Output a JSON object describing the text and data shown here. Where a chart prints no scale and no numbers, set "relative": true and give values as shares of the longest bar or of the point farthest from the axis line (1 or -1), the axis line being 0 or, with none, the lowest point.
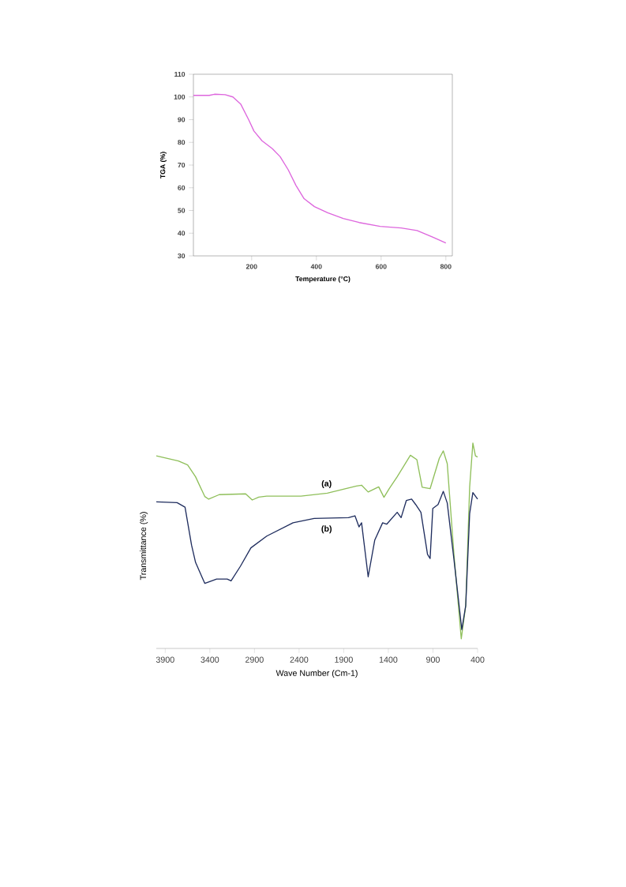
{
  "chart_data": [
    {
      "type": "line",
      "xlabel": "Temperature (°C)",
      "ylabel": "TGA (%)",
      "xlim": [
        20,
        820
      ],
      "ylim": [
        30,
        110
      ],
      "xticks": [
        200,
        400,
        600,
        800
      ],
      "yticks": [
        30,
        40,
        50,
        60,
        70,
        80,
        90,
        100,
        110
      ],
      "series": [
        {
          "color": "#dd66dd",
          "x": [
            20,
            69,
            85,
            118,
            142,
            166,
            191,
            207,
            232,
            264,
            288,
            313,
            337,
            362,
            394,
            435,
            483,
            532,
            597,
            662,
            711,
            759,
            800
          ],
          "values": [
            100.7,
            100.7,
            101.2,
            101,
            100,
            96.9,
            89.9,
            85,
            80.7,
            77.2,
            73.7,
            67.9,
            61,
            55.2,
            51.7,
            49,
            46.5,
            44.7,
            43,
            42.3,
            41.2,
            38.3,
            35.7
          ]
        }
      ]
    },
    {
      "type": "line",
      "relative": true,
      "xlabel": "Wave Number (Cm-1)",
      "ylabel": "Transmittance (%)",
      "xlim": [
        4000,
        400
      ],
      "xticks": [
        3900,
        3400,
        2900,
        2400,
        1900,
        1400,
        900,
        400
      ],
      "annotations": [
        "(a)",
        "(b)"
      ],
      "series": [
        {
          "color": "#8fbf5a",
          "x": [
            4000,
            3752,
            3649,
            3560,
            3457,
            3413,
            3295,
            2999,
            2925,
            2852,
            2763,
            2379,
            2084,
            1759,
            1700,
            1626,
            1508,
            1449,
            1390,
            1301,
            1153,
            1080,
            1021,
            932,
            829,
            784,
            740,
            666,
            583,
            533,
            489,
            453,
            424,
            400
          ],
          "values": [
            0.938,
            0.913,
            0.894,
            0.836,
            0.74,
            0.727,
            0.749,
            0.753,
            0.723,
            0.737,
            0.742,
            0.742,
            0.756,
            0.791,
            0.795,
            0.762,
            0.787,
            0.736,
            0.778,
            0.836,
            0.941,
            0.919,
            0.785,
            0.778,
            0.926,
            0.962,
            0.9,
            0.464,
            0.047,
            0.208,
            0.785,
            1.0,
            0.938,
            0.932
          ]
        },
        {
          "color": "#1f2d5e",
          "x": [
            4000,
            3767,
            3678,
            3605,
            3560,
            3457,
            3324,
            3206,
            3162,
            3058,
            2940,
            2763,
            2468,
            2231,
            1847,
            1774,
            1729,
            1700,
            1626,
            1552,
            1464,
            1419,
            1301,
            1257,
            1198,
            1139,
            1094,
            1035,
            961,
            932,
            902,
            843,
            784,
            740,
            666,
            577,
            533,
            489,
            453,
            400
          ],
          "values": [
            0.714,
            0.71,
            0.688,
            0.503,
            0.419,
            0.317,
            0.338,
            0.338,
            0.329,
            0.4,
            0.49,
            0.547,
            0.612,
            0.633,
            0.637,
            0.646,
            0.592,
            0.612,
            0.349,
            0.528,
            0.612,
            0.605,
            0.663,
            0.637,
            0.721,
            0.727,
            0.701,
            0.663,
            0.458,
            0.438,
            0.682,
            0.701,
            0.765,
            0.708,
            0.438,
            0.092,
            0.208,
            0.656,
            0.759,
            0.727
          ]
        }
      ]
    }
  ]
}
